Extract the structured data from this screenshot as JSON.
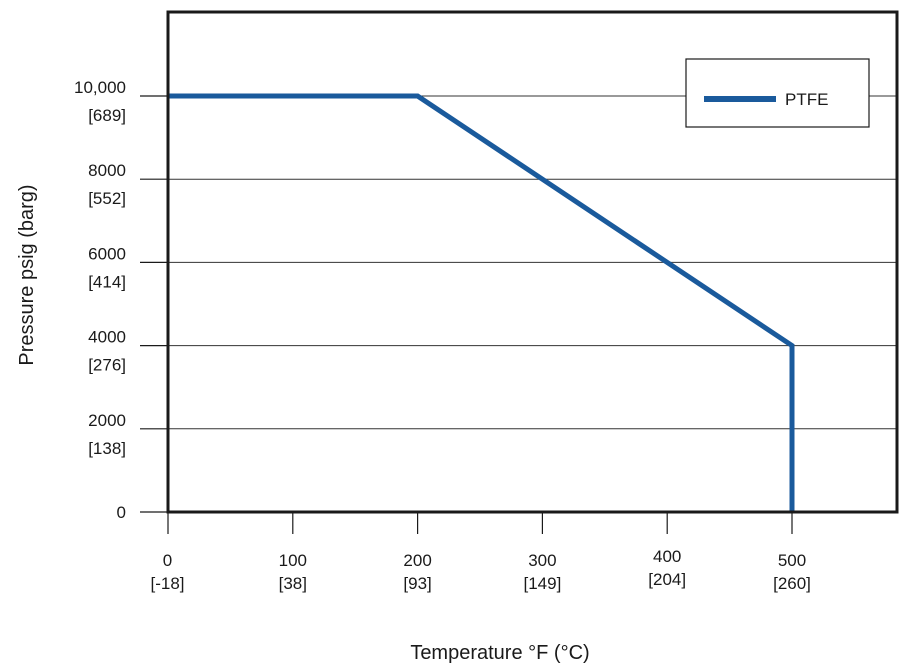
{
  "chart_data": {
    "type": "line",
    "title": "",
    "xlabel": "Temperature °F (°C)",
    "ylabel": "Pressure psig (barg)",
    "xlim": [
      0,
      580
    ],
    "ylim": [
      0,
      12000
    ],
    "grid": "horizontal",
    "legend_position": "top-right",
    "x_ticks": [
      {
        "value": 0,
        "label": "0",
        "sublabel": "[-18]"
      },
      {
        "value": 100,
        "label": "100",
        "sublabel": "[38]"
      },
      {
        "value": 200,
        "label": "200",
        "sublabel": "[93]"
      },
      {
        "value": 300,
        "label": "300",
        "sublabel": "[149]"
      },
      {
        "value": 400,
        "label": "400",
        "sublabel": "[204]"
      },
      {
        "value": 500,
        "label": "500",
        "sublabel": "[260]"
      }
    ],
    "y_ticks": [
      {
        "value": 0,
        "label": "0",
        "sublabel": ""
      },
      {
        "value": 2000,
        "label": "2000",
        "sublabel": "[138]"
      },
      {
        "value": 4000,
        "label": "4000",
        "sublabel": "[276]"
      },
      {
        "value": 6000,
        "label": "6000",
        "sublabel": "[414]"
      },
      {
        "value": 8000,
        "label": "8000",
        "sublabel": "[552]"
      },
      {
        "value": 10000,
        "label": "10,000",
        "sublabel": "[689]"
      }
    ],
    "series": [
      {
        "name": "PTFE",
        "color": "#1a5a9c",
        "points": [
          {
            "x": 0,
            "y": 10000
          },
          {
            "x": 200,
            "y": 10000
          },
          {
            "x": 500,
            "y": 4000
          },
          {
            "x": 500,
            "y": 0
          }
        ]
      }
    ]
  }
}
